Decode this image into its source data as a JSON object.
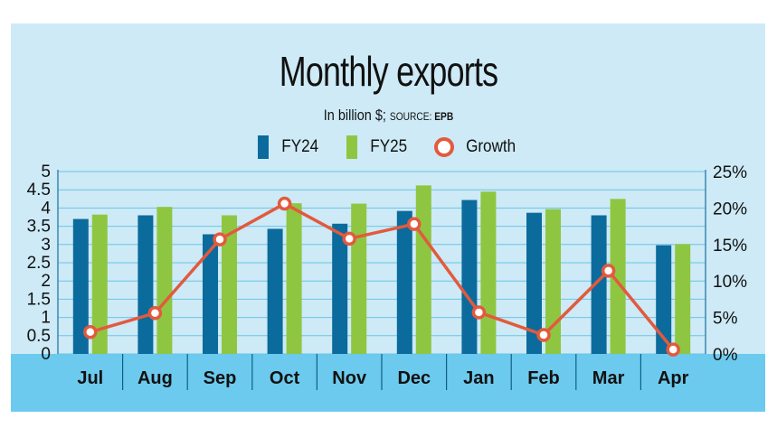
{
  "chart_data": {
    "type": "bar",
    "title": "Monthly exports",
    "subtitle": {
      "prefix": "In billion $; ",
      "source_label": "SOURCE: ",
      "source": "EPB"
    },
    "categories": [
      "Jul",
      "Aug",
      "Sep",
      "Oct",
      "Nov",
      "Dec",
      "Jan",
      "Feb",
      "Mar",
      "Apr"
    ],
    "series": [
      {
        "name": "FY24",
        "type": "bar",
        "axis": "left",
        "color": "#0b6b9c",
        "values": [
          3.7,
          3.8,
          3.28,
          3.43,
          3.57,
          3.92,
          4.22,
          3.87,
          3.8,
          2.98
        ]
      },
      {
        "name": "FY25",
        "type": "bar",
        "axis": "left",
        "color": "#8fc641",
        "values": [
          3.82,
          4.03,
          3.8,
          4.13,
          4.12,
          4.62,
          4.45,
          3.97,
          4.25,
          3.01
        ]
      },
      {
        "name": "Growth",
        "type": "line",
        "axis": "right",
        "color": "#e25a3e",
        "values": [
          3.0,
          5.6,
          15.7,
          20.6,
          15.8,
          17.8,
          5.7,
          2.6,
          11.4,
          0.6
        ]
      }
    ],
    "y_left": {
      "min": 0,
      "max": 5,
      "ticks": [
        "0",
        "0.5",
        "1",
        "1.5",
        "2",
        "2.5",
        "3",
        "3.5",
        "4",
        "4.5",
        "5"
      ]
    },
    "y_right": {
      "min": 0,
      "max": 25,
      "ticks": [
        "0%",
        "5%",
        "10%",
        "15%",
        "20%",
        "25%"
      ]
    },
    "grid": true,
    "legend_position": "top-center"
  }
}
